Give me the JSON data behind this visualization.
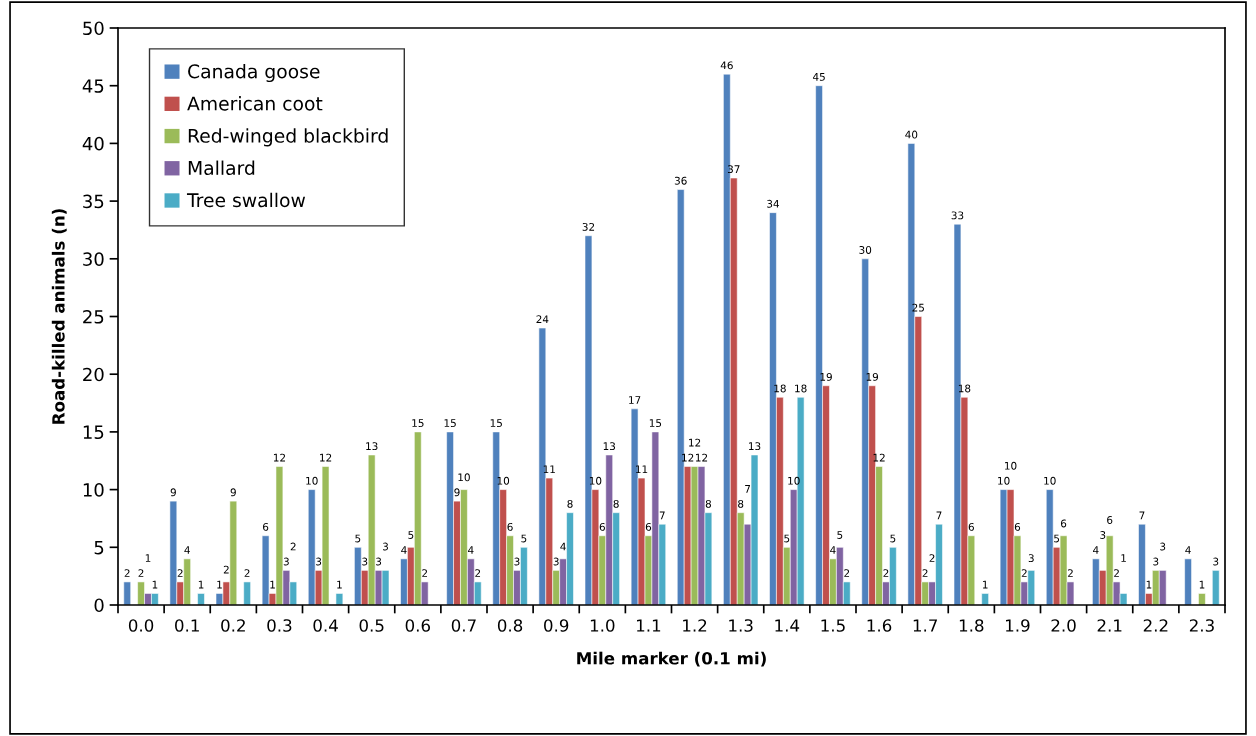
{
  "chart_data": {
    "type": "bar",
    "xlabel": "Mile marker (0.1 mi)",
    "ylabel": "Road-killed animals (n)",
    "categories": [
      "0.0",
      "0.1",
      "0.2",
      "0.3",
      "0.4",
      "0.5",
      "0.6",
      "0.7",
      "0.8",
      "0.9",
      "1.0",
      "1.1",
      "1.2",
      "1.3",
      "1.4",
      "1.5",
      "1.6",
      "1.7",
      "1.8",
      "1.9",
      "2.0",
      "2.1",
      "2.2",
      "2.3"
    ],
    "series": [
      {
        "name": "Canada goose",
        "color": "#4f81bd",
        "values": [
          2,
          9,
          1,
          6,
          10,
          5,
          4,
          15,
          15,
          24,
          32,
          17,
          36,
          46,
          34,
          45,
          30,
          40,
          33,
          10,
          10,
          4,
          7,
          4
        ]
      },
      {
        "name": "American coot",
        "color": "#c0504d",
        "values": [
          null,
          2,
          2,
          1,
          3,
          3,
          5,
          9,
          10,
          11,
          10,
          11,
          12,
          37,
          18,
          19,
          19,
          25,
          18,
          10,
          5,
          3,
          1,
          null
        ]
      },
      {
        "name": "Red-winged blackbird",
        "color": "#9bbb59",
        "values": [
          2,
          4,
          9,
          12,
          12,
          13,
          15,
          10,
          6,
          3,
          6,
          6,
          12,
          8,
          5,
          4,
          12,
          2,
          6,
          6,
          6,
          6,
          3,
          1
        ]
      },
      {
        "name": "Mallard",
        "color": "#8064a2",
        "values": [
          1,
          null,
          null,
          3,
          null,
          3,
          2,
          4,
          3,
          4,
          13,
          15,
          12,
          7,
          10,
          5,
          2,
          2,
          null,
          2,
          2,
          2,
          3,
          null
        ]
      },
      {
        "name": "Tree swallow",
        "color": "#4bacc6",
        "values": [
          1,
          1,
          2,
          2,
          1,
          3,
          null,
          2,
          5,
          8,
          8,
          7,
          8,
          13,
          18,
          2,
          5,
          7,
          1,
          3,
          null,
          1,
          null,
          3
        ]
      }
    ],
    "ylim": [
      0,
      50
    ],
    "yticks": [
      0,
      5,
      10,
      15,
      20,
      25,
      30,
      35,
      40,
      45,
      50
    ],
    "grid": false,
    "legend": "top left",
    "data_labels": true
  }
}
